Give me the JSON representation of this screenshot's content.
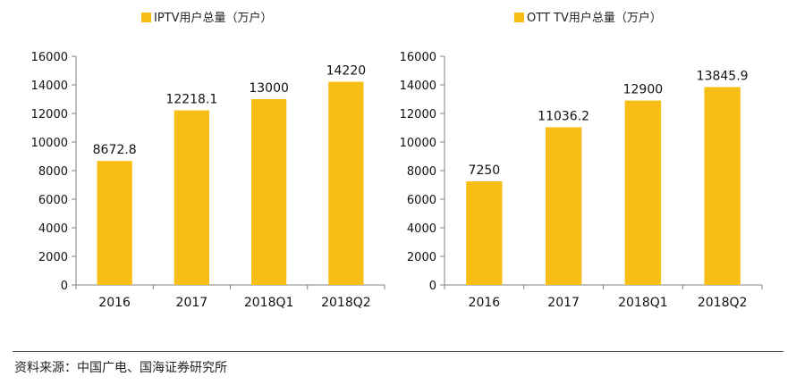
{
  "colors": {
    "bar": "#F7BE16",
    "axis": "#808080"
  },
  "chart_data": [
    {
      "type": "bar",
      "legend": "IPTV用户总量（万户）",
      "categories": [
        "2016",
        "2017",
        "2018Q1",
        "2018Q2"
      ],
      "series": [
        {
          "name": "IPTV用户总量（万户）",
          "values": [
            8672.8,
            12218.1,
            13000,
            14220
          ]
        }
      ],
      "data_labels": [
        "8672.8",
        "12218.1",
        "13000",
        "14220"
      ],
      "ylim": [
        0,
        16000
      ],
      "yticks": [
        0,
        2000,
        4000,
        6000,
        8000,
        10000,
        12000,
        14000,
        16000
      ],
      "legend_position": "top",
      "grid": false
    },
    {
      "type": "bar",
      "legend": "OTT TV用户总量（万户）",
      "categories": [
        "2016",
        "2017",
        "2018Q1",
        "2018Q2"
      ],
      "series": [
        {
          "name": "OTT TV用户总量（万户）",
          "values": [
            7250,
            11036.2,
            12900,
            13845.9
          ]
        }
      ],
      "data_labels": [
        "7250",
        "11036.2",
        "12900",
        "13845.9"
      ],
      "ylim": [
        0,
        16000
      ],
      "yticks": [
        0,
        2000,
        4000,
        6000,
        8000,
        10000,
        12000,
        14000,
        16000
      ],
      "legend_position": "top",
      "grid": false
    }
  ],
  "source": "资料来源：中国广电、国海证券研究所"
}
